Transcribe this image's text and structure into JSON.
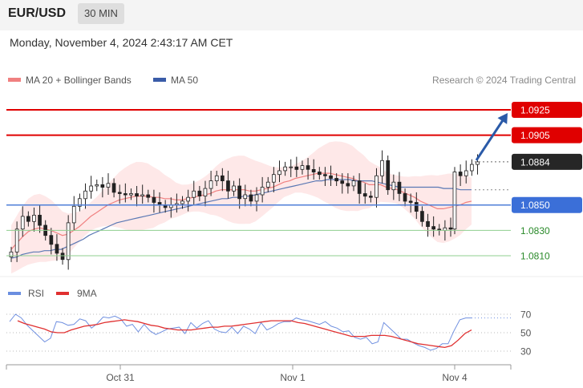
{
  "header": {
    "pair": "EUR/USD",
    "timeframe": "30 MIN",
    "datetime": "Monday, November 4, 2024 2:43:17 AM CET"
  },
  "legend": {
    "ma20": "MA 20 + Bollinger Bands",
    "ma50": "MA 50",
    "credit": "Research © 2024 Trading Central"
  },
  "rsi_legend": {
    "rsi": "RSI",
    "ma9": "9MA"
  },
  "colors": {
    "candle": "#222222",
    "ma20": "#f08080",
    "band_fill": "#fde0e0",
    "ma50": "#5a78b4",
    "resistance": "#e00000",
    "support": "#4f7fd8",
    "support_line": "#8fcf8f",
    "support_label": "#2a8a2a",
    "arrow": "#2a5aa8",
    "rsi": "#7090e0",
    "rsi_ma": "#e03030"
  },
  "chart_data": {
    "type": "candlestick",
    "y_range": [
      1.0798,
      1.0937
    ],
    "x_labels": [
      "Oct 31",
      "Nov 1",
      "Nov 4"
    ],
    "levels": [
      {
        "label": "1.0925",
        "value": 1.0925,
        "style": "resistance"
      },
      {
        "label": "1.0905",
        "value": 1.0905,
        "style": "resistance"
      },
      {
        "label": "1.0884",
        "value": 1.0884,
        "style": "current"
      },
      {
        "label": "1.0850",
        "value": 1.085,
        "style": "pivot"
      },
      {
        "label": "1.0830",
        "value": 1.083,
        "style": "support"
      },
      {
        "label": "1.0810",
        "value": 1.081,
        "style": "support"
      }
    ],
    "arrow": {
      "from": 1.0884,
      "to": 1.0925
    },
    "closes": [
      1.0813,
      1.0831,
      1.0841,
      1.0837,
      1.0842,
      1.0834,
      1.0826,
      1.0819,
      1.0812,
      1.0807,
      1.0836,
      1.0849,
      1.0855,
      1.0861,
      1.0865,
      1.0866,
      1.0864,
      1.0867,
      1.086,
      1.0859,
      1.0858,
      1.0859,
      1.0857,
      1.0858,
      1.0856,
      1.0852,
      1.085,
      1.0848,
      1.085,
      1.0851,
      1.0853,
      1.0856,
      1.0861,
      1.0857,
      1.0863,
      1.0869,
      1.0873,
      1.0869,
      1.0861,
      1.0865,
      1.0855,
      1.0858,
      1.0853,
      1.0858,
      1.0864,
      1.0868,
      1.0874,
      1.0877,
      1.088,
      1.088,
      1.0878,
      1.0881,
      1.0878,
      1.0876,
      1.0874,
      1.0873,
      1.0871,
      1.0869,
      1.0867,
      1.0865,
      1.0869,
      1.0859,
      1.0857,
      1.0856,
      1.0873,
      1.0885,
      1.0862,
      1.0868,
      1.0859,
      1.0853,
      1.0852,
      1.0845,
      1.0837,
      1.0833,
      1.0831,
      1.083,
      1.0832,
      1.0831
    ],
    "closes_2": [
      1.0876,
      1.0873,
      1.0877,
      1.0882,
      1.0884
    ],
    "ma20": [
      1.0815,
      1.082,
      1.0825,
      1.0829,
      1.0831,
      1.0832,
      1.0831,
      1.083,
      1.0828,
      1.0826,
      1.0827,
      1.083,
      1.0833,
      1.0837,
      1.0841,
      1.0844,
      1.0847,
      1.085,
      1.0852,
      1.0854,
      1.0855,
      1.0856,
      1.0857,
      1.0857,
      1.0857,
      1.0856,
      1.0856,
      1.0855,
      1.0855,
      1.0854,
      1.0854,
      1.0855,
      1.0856,
      1.0857,
      1.0858,
      1.0859,
      1.0861,
      1.0862,
      1.0862,
      1.0862,
      1.0862,
      1.0862,
      1.0861,
      1.0861,
      1.0862,
      1.0863,
      1.0864,
      1.0866,
      1.0868,
      1.0869,
      1.0871,
      1.0872,
      1.0873,
      1.0874,
      1.0875,
      1.0875,
      1.0875,
      1.0874,
      1.0873,
      1.0872,
      1.0871,
      1.0869,
      1.0868,
      1.0866,
      1.0866,
      1.0866,
      1.0864,
      1.0863,
      1.0862,
      1.086,
      1.0858,
      1.0856,
      1.0853,
      1.0851,
      1.0849,
      1.0847,
      1.0847,
      1.0848,
      1.0849,
      1.085,
      1.0852,
      1.0853
    ],
    "ma50": [
      1.0808,
      1.0809,
      1.0811,
      1.0812,
      1.0813,
      1.0813,
      1.0814,
      1.0814,
      1.0815,
      1.0815,
      1.0817,
      1.0819,
      1.0821,
      1.0823,
      1.0826,
      1.0828,
      1.083,
      1.0832,
      1.0834,
      1.0836,
      1.0837,
      1.0838,
      1.0839,
      1.084,
      1.0841,
      1.0842,
      1.0843,
      1.0844,
      1.0845,
      1.0846,
      1.0847,
      1.0848,
      1.0849,
      1.085,
      1.0851,
      1.0852,
      1.0853,
      1.0854,
      1.0855,
      1.0855,
      1.0856,
      1.0856,
      1.0857,
      1.0857,
      1.0858,
      1.0859,
      1.086,
      1.0861,
      1.0862,
      1.0863,
      1.0864,
      1.0865,
      1.0866,
      1.0867,
      1.0868,
      1.0869,
      1.0869,
      1.087,
      1.087,
      1.087,
      1.087,
      1.087,
      1.0869,
      1.0869,
      1.0869,
      1.0869,
      1.0868,
      1.0867,
      1.0866,
      1.0865,
      1.0864,
      1.0864,
      1.0864,
      1.0864,
      1.0864,
      1.0864,
      1.0864,
      1.0864,
      1.0863,
      1.0863,
      1.0863,
      1.0862,
      1.0862,
      1.0862
    ],
    "rsi": {
      "ticks": [
        70,
        50,
        30
      ],
      "rsi_values": [
        62,
        70,
        66,
        58,
        52,
        46,
        40,
        44,
        62,
        61,
        58,
        59,
        65,
        63,
        55,
        60,
        67,
        66,
        68,
        65,
        57,
        59,
        51,
        59,
        52,
        48,
        51,
        54,
        55,
        56,
        49,
        61,
        55,
        60,
        63,
        54,
        51,
        50,
        56,
        49,
        57,
        54,
        49,
        61,
        53,
        56,
        60,
        62,
        62,
        66,
        64,
        63,
        61,
        59,
        62,
        57,
        55,
        51,
        52,
        45,
        43,
        45,
        38,
        40,
        61,
        55,
        49,
        43,
        43,
        39,
        36,
        34,
        31,
        33,
        38,
        38,
        52,
        64,
        66,
        66
      ],
      "ma9_values": [
        63,
        60,
        58,
        56,
        54,
        51,
        50,
        50,
        53,
        55,
        57,
        58,
        59,
        61,
        62,
        63,
        64,
        63,
        62,
        60,
        58,
        57,
        55,
        54,
        53,
        53,
        53,
        54,
        55,
        56,
        56,
        57,
        57,
        58,
        59,
        60,
        61,
        62,
        63,
        63,
        63,
        63,
        61,
        60,
        58,
        56,
        54,
        52,
        50,
        48,
        46,
        46,
        46,
        47,
        47,
        47,
        46,
        44,
        42,
        40,
        38,
        37,
        36,
        35,
        34,
        36,
        42,
        49,
        53
      ]
    }
  }
}
